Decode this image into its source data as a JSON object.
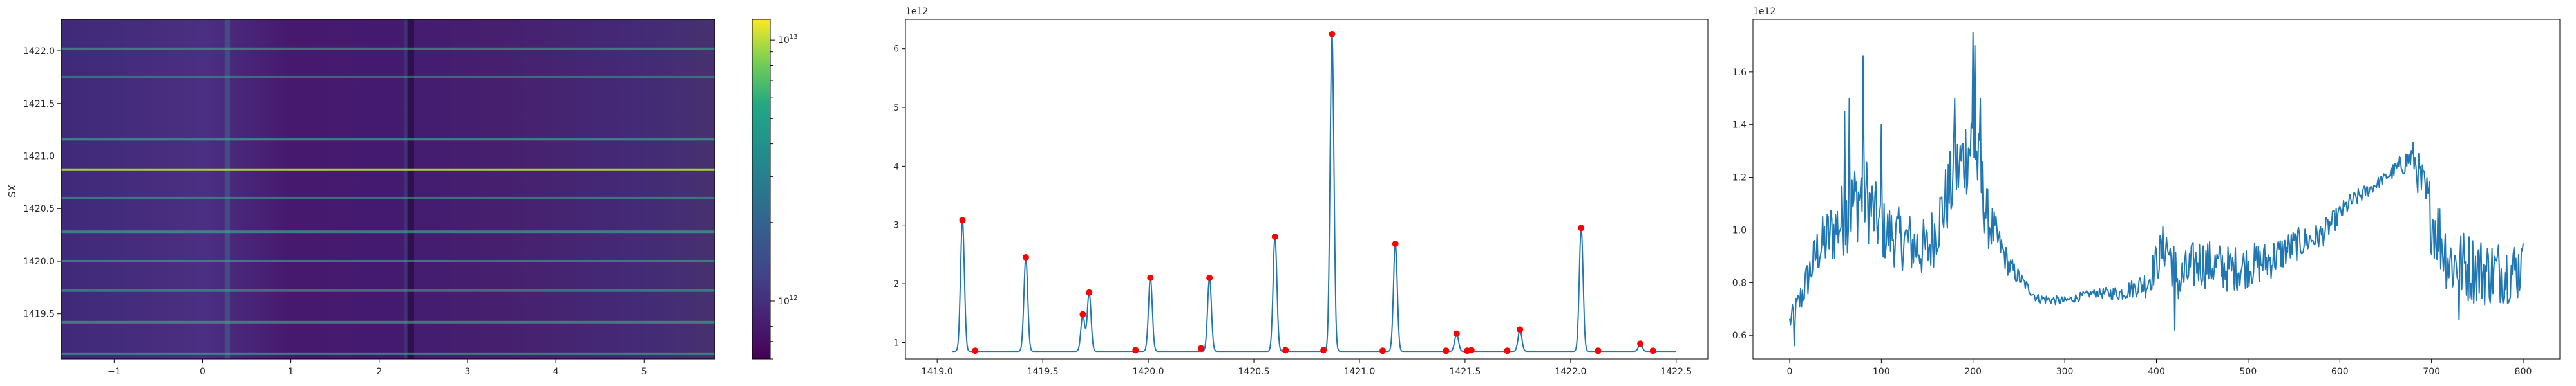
{
  "chart_data": [
    {
      "type": "heatmap",
      "title": "",
      "xlabel": "",
      "ylabel": "SX",
      "xlim": [
        -1.6,
        5.8
      ],
      "ylim": [
        1419.07,
        1422.3
      ],
      "x_ticks": [
        -1,
        0,
        1,
        2,
        3,
        4,
        5
      ],
      "x_tick_labels": [
        "−1",
        "0",
        "1",
        "2",
        "3",
        "4",
        "5"
      ],
      "y_ticks": [
        1419.5,
        1420.0,
        1420.5,
        1421.0,
        1421.5,
        1422.0
      ],
      "y_tick_labels": [
        "1419.5",
        "1420.0",
        "1420.5",
        "1421.0",
        "1421.5",
        "1422.0"
      ],
      "colormap": "viridis",
      "colorbar": {
        "scale": "log",
        "range": [
          600000000000,
          12000000000000
        ],
        "tick_values": [
          1000000000000,
          10000000000000
        ],
        "tick_labels": [
          {
            "base": "10",
            "exp": "12"
          },
          {
            "base": "10",
            "exp": "13"
          }
        ]
      },
      "horizontal_bands": [
        {
          "y": 1422.02,
          "strength": 0.45
        },
        {
          "y": 1421.75,
          "strength": 0.3
        },
        {
          "y": 1421.16,
          "strength": 0.55
        },
        {
          "y": 1420.87,
          "strength": 0.95
        },
        {
          "y": 1420.6,
          "strength": 0.4
        },
        {
          "y": 1420.28,
          "strength": 0.55
        },
        {
          "y": 1420.0,
          "strength": 0.45
        },
        {
          "y": 1419.72,
          "strength": 0.4
        },
        {
          "y": 1419.42,
          "strength": 0.5
        },
        {
          "y": 1419.12,
          "strength": 0.55
        }
      ],
      "vertical_bands": [
        {
          "x": 0.28,
          "width": 0.06,
          "strength": 0.5
        },
        {
          "x": 2.36,
          "width": 0.07,
          "strength": -0.6
        },
        {
          "x": 2.3,
          "width": 0.03,
          "strength": 0.25
        }
      ]
    },
    {
      "type": "line",
      "title": "",
      "xlabel": "",
      "ylabel": "",
      "xlim": [
        1418.85,
        1422.65
      ],
      "ylim": [
        0.72,
        6.5
      ],
      "y_offset_label": "1e12",
      "x_ticks": [
        1419.0,
        1419.5,
        1420.0,
        1420.5,
        1421.0,
        1421.5,
        1422.0,
        1422.5
      ],
      "x_tick_labels": [
        "1419.0",
        "1419.5",
        "1420.0",
        "1420.5",
        "1421.0",
        "1421.5",
        "1422.0",
        "1422.5"
      ],
      "y_ticks": [
        1,
        2,
        3,
        4,
        5,
        6
      ],
      "y_tick_labels": [
        "1",
        "2",
        "3",
        "4",
        "5",
        "6"
      ],
      "baseline": 0.85,
      "x_range": [
        1419.07,
        1422.5
      ],
      "peaks": [
        {
          "x": 1419.12,
          "y": 3.08
        },
        {
          "x": 1419.42,
          "y": 2.45
        },
        {
          "x": 1419.69,
          "y": 1.48
        },
        {
          "x": 1419.72,
          "y": 1.85
        },
        {
          "x": 1420.01,
          "y": 2.1
        },
        {
          "x": 1420.29,
          "y": 2.1
        },
        {
          "x": 1420.6,
          "y": 2.8
        },
        {
          "x": 1420.87,
          "y": 6.25
        },
        {
          "x": 1421.17,
          "y": 2.68
        },
        {
          "x": 1421.46,
          "y": 1.15
        },
        {
          "x": 1421.76,
          "y": 1.22
        },
        {
          "x": 1422.05,
          "y": 2.95
        },
        {
          "x": 1422.33,
          "y": 0.98
        }
      ],
      "markers": [
        {
          "x": 1419.12,
          "y": 3.08
        },
        {
          "x": 1419.18,
          "y": 0.86
        },
        {
          "x": 1419.42,
          "y": 2.45
        },
        {
          "x": 1419.69,
          "y": 1.48
        },
        {
          "x": 1419.72,
          "y": 1.85
        },
        {
          "x": 1419.94,
          "y": 0.87
        },
        {
          "x": 1420.01,
          "y": 2.1
        },
        {
          "x": 1420.25,
          "y": 0.9
        },
        {
          "x": 1420.29,
          "y": 2.1
        },
        {
          "x": 1420.6,
          "y": 2.8
        },
        {
          "x": 1420.65,
          "y": 0.87
        },
        {
          "x": 1420.83,
          "y": 0.87
        },
        {
          "x": 1420.87,
          "y": 6.25
        },
        {
          "x": 1421.11,
          "y": 0.86
        },
        {
          "x": 1421.17,
          "y": 2.68
        },
        {
          "x": 1421.41,
          "y": 0.86
        },
        {
          "x": 1421.46,
          "y": 1.15
        },
        {
          "x": 1421.51,
          "y": 0.86
        },
        {
          "x": 1421.53,
          "y": 0.87
        },
        {
          "x": 1421.7,
          "y": 0.86
        },
        {
          "x": 1421.76,
          "y": 1.22
        },
        {
          "x": 1422.05,
          "y": 2.95
        },
        {
          "x": 1422.13,
          "y": 0.86
        },
        {
          "x": 1422.33,
          "y": 0.98
        },
        {
          "x": 1422.39,
          "y": 0.86
        }
      ],
      "line_color": "#1f77b4",
      "marker_color": "#ff0000"
    },
    {
      "type": "line",
      "title": "",
      "xlabel": "",
      "ylabel": "",
      "xlim": [
        -40,
        840
      ],
      "ylim": [
        0.51,
        1.8
      ],
      "y_offset_label": "1e12",
      "x_ticks": [
        0,
        100,
        200,
        300,
        400,
        500,
        600,
        700,
        800
      ],
      "x_tick_labels": [
        "0",
        "100",
        "200",
        "300",
        "400",
        "500",
        "600",
        "700",
        "800"
      ],
      "y_ticks": [
        0.6,
        0.8,
        1.0,
        1.2,
        1.4,
        1.6
      ],
      "y_tick_labels": [
        "0.6",
        "0.8",
        "1.0",
        "1.2",
        "1.4",
        "1.6"
      ],
      "n_points": 801,
      "trend": [
        [
          0,
          0.65
        ],
        [
          10,
          0.72
        ],
        [
          30,
          0.92
        ],
        [
          60,
          1.05
        ],
        [
          80,
          1.15
        ],
        [
          100,
          1.0
        ],
        [
          150,
          0.92
        ],
        [
          180,
          1.2
        ],
        [
          200,
          1.35
        ],
        [
          215,
          1.05
        ],
        [
          240,
          0.86
        ],
        [
          270,
          0.74
        ],
        [
          300,
          0.73
        ],
        [
          330,
          0.76
        ],
        [
          360,
          0.76
        ],
        [
          390,
          0.8
        ],
        [
          410,
          0.95
        ],
        [
          425,
          0.8
        ],
        [
          445,
          0.88
        ],
        [
          480,
          0.85
        ],
        [
          520,
          0.88
        ],
        [
          550,
          0.94
        ],
        [
          580,
          0.98
        ],
        [
          610,
          1.1
        ],
        [
          650,
          1.2
        ],
        [
          680,
          1.28
        ],
        [
          695,
          1.1
        ],
        [
          720,
          0.88
        ],
        [
          760,
          0.84
        ],
        [
          800,
          0.85
        ]
      ],
      "noise": [
        [
          0,
          0.04
        ],
        [
          20,
          0.08
        ],
        [
          40,
          0.12
        ],
        [
          80,
          0.18
        ],
        [
          100,
          0.12
        ],
        [
          150,
          0.12
        ],
        [
          200,
          0.18
        ],
        [
          230,
          0.06
        ],
        [
          260,
          0.02
        ],
        [
          330,
          0.015
        ],
        [
          380,
          0.04
        ],
        [
          410,
          0.1
        ],
        [
          440,
          0.1
        ],
        [
          520,
          0.08
        ],
        [
          600,
          0.04
        ],
        [
          650,
          0.02
        ],
        [
          680,
          0.06
        ],
        [
          700,
          0.15
        ],
        [
          800,
          0.12
        ]
      ],
      "spikes": [
        {
          "x": 60,
          "y": 1.45
        },
        {
          "x": 65,
          "y": 1.5
        },
        {
          "x": 80,
          "y": 1.66
        },
        {
          "x": 100,
          "y": 1.4
        },
        {
          "x": 180,
          "y": 1.5
        },
        {
          "x": 200,
          "y": 1.75
        },
        {
          "x": 202,
          "y": 1.7
        },
        {
          "x": 208,
          "y": 1.5
        },
        {
          "x": 5,
          "y": 0.56
        },
        {
          "x": 420,
          "y": 0.62
        },
        {
          "x": 730,
          "y": 0.66
        },
        {
          "x": 798,
          "y": 0.93
        }
      ],
      "line_color": "#1f77b4"
    }
  ]
}
